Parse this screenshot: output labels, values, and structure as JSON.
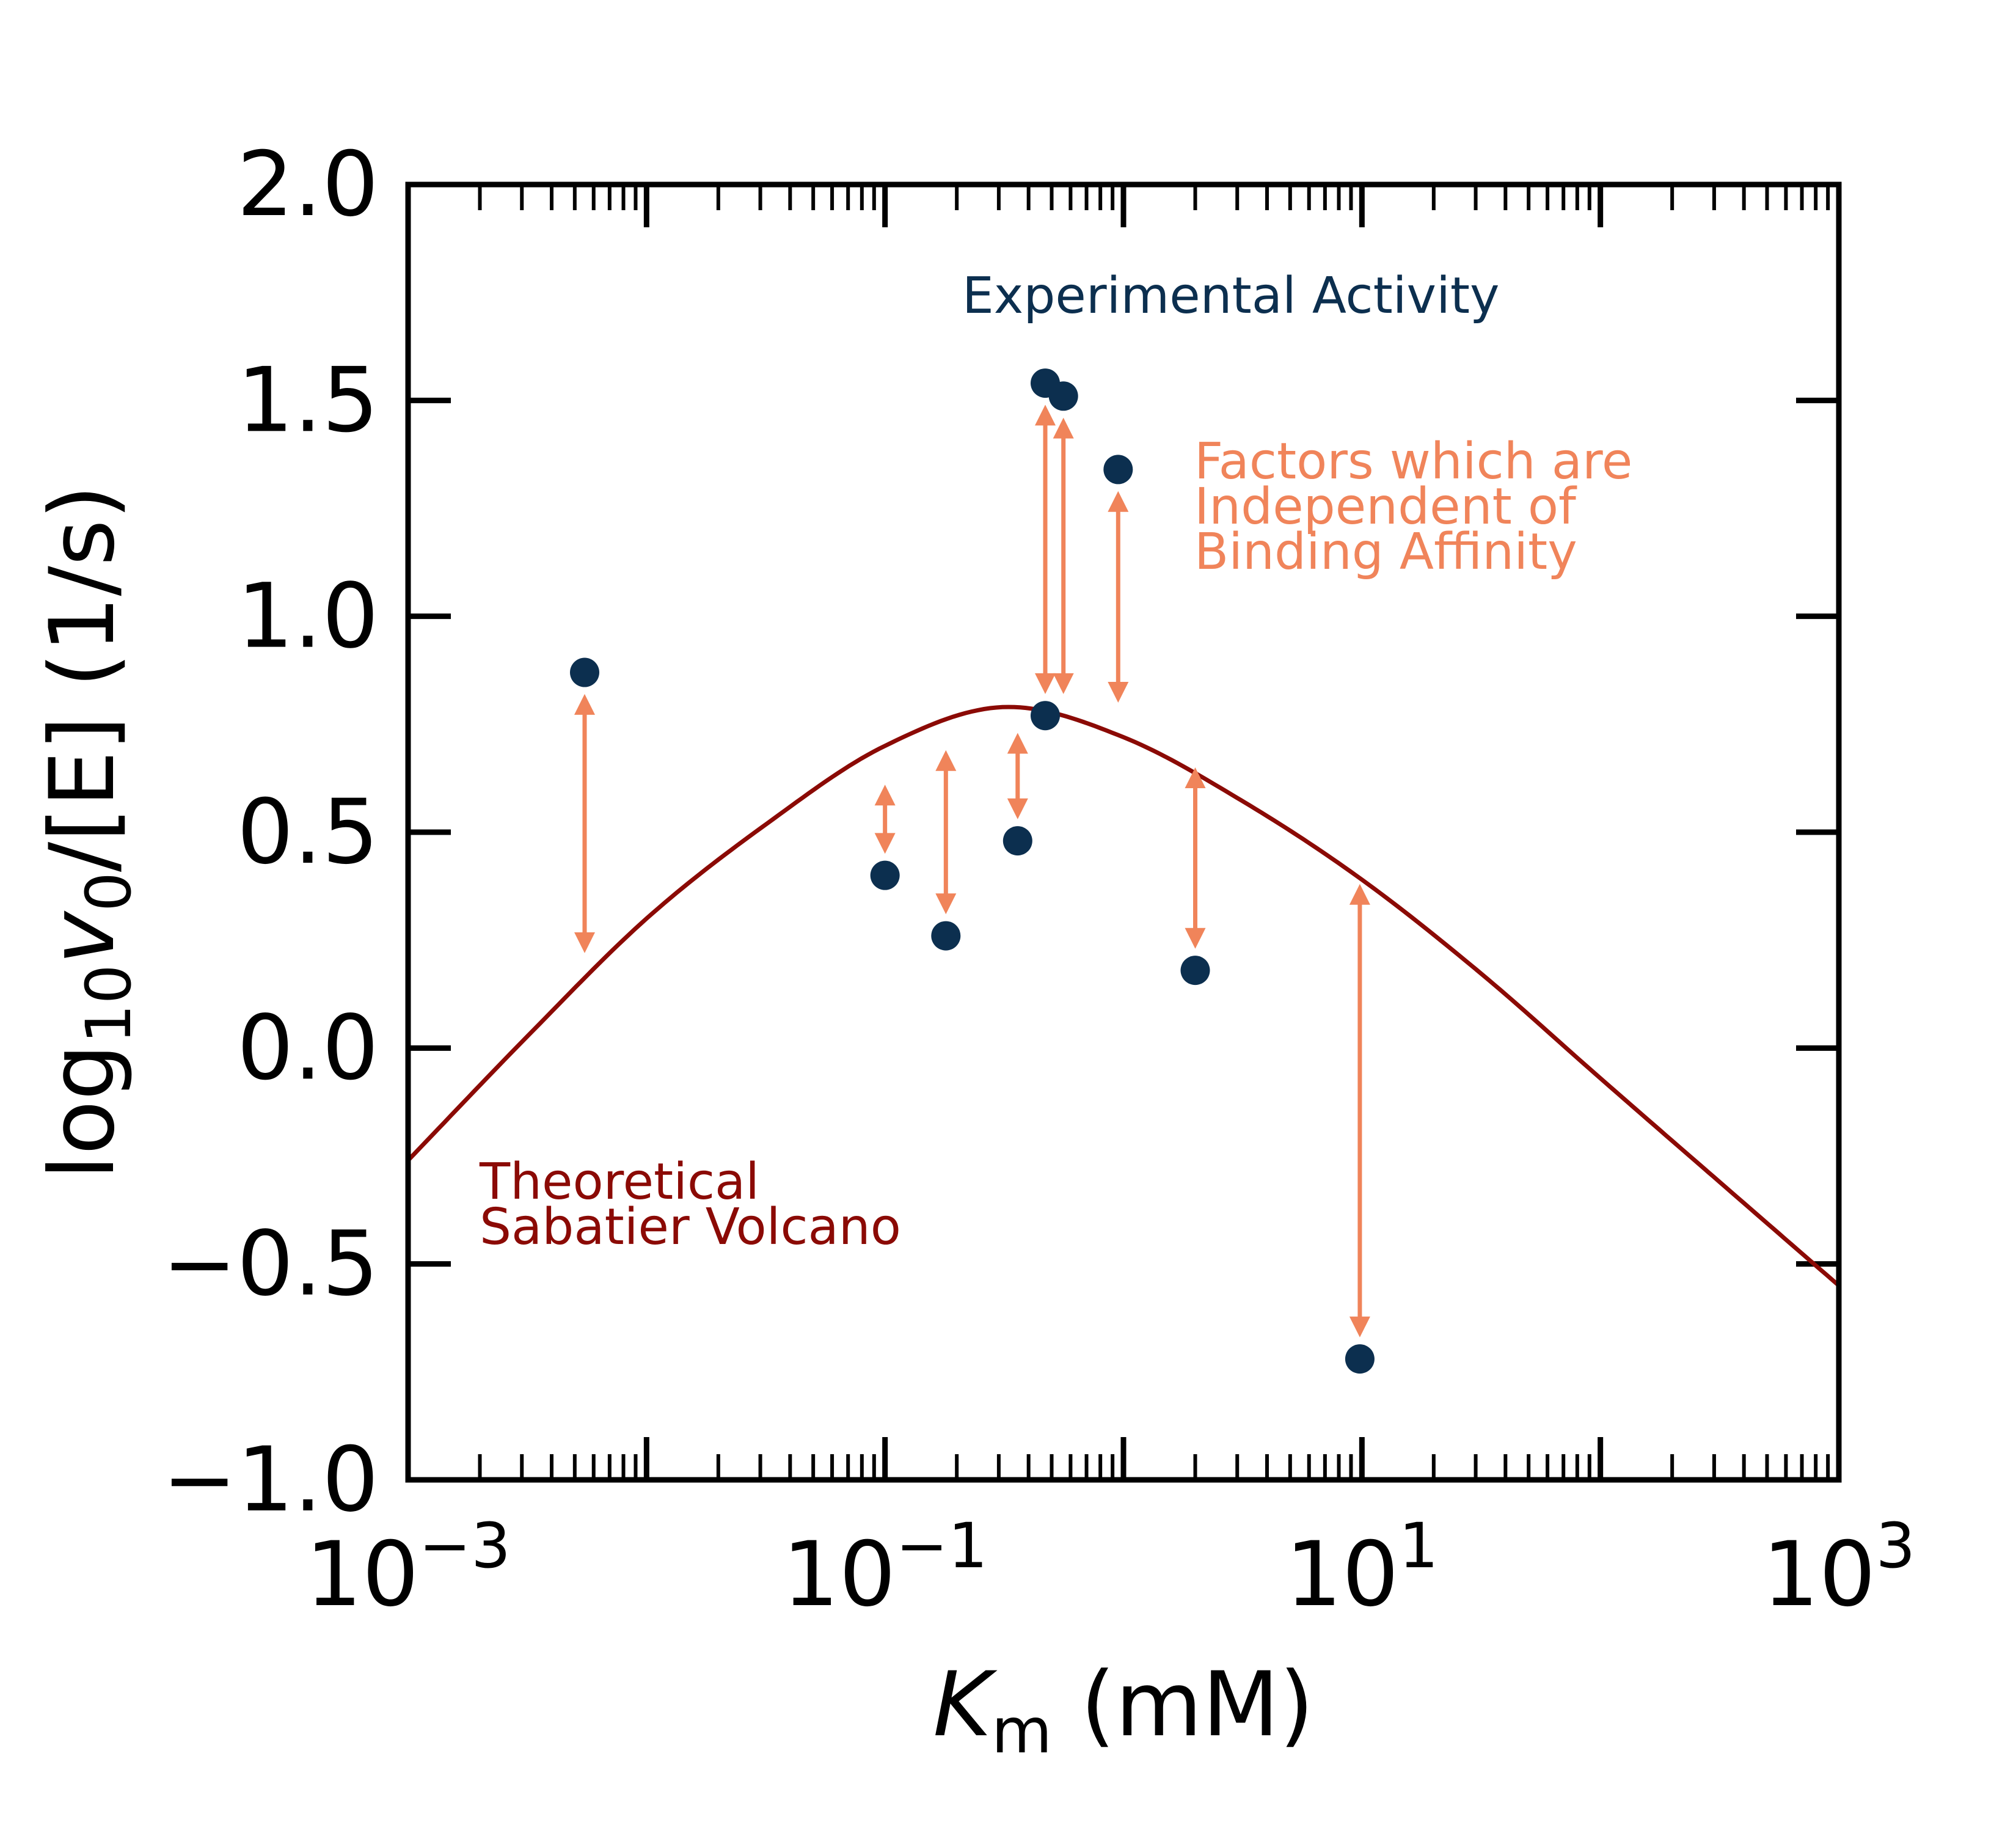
{
  "chart_data": {
    "type": "scatter",
    "x_scale": "log",
    "xlim": [
      0.001,
      1000
    ],
    "ylim": [
      -1.0,
      2.0
    ],
    "grid": false,
    "xlabel": {
      "main": "K",
      "sub": "m",
      "rest": " (mM)"
    },
    "ylabel": {
      "pre": "log",
      "sub": "10",
      "var": "v",
      "var_sub": "0",
      "rest": "/[E] (1/s)"
    },
    "y_ticks": [
      {
        "value": -1.0,
        "label": "−1.0"
      },
      {
        "value": -0.5,
        "label": "−0.5"
      },
      {
        "value": 0.0,
        "label": "0.0"
      },
      {
        "value": 0.5,
        "label": "0.5"
      },
      {
        "value": 1.0,
        "label": "1.0"
      },
      {
        "value": 1.5,
        "label": "1.5"
      },
      {
        "value": 2.0,
        "label": "2.0"
      }
    ],
    "x_ticks": [
      {
        "value": 0.001,
        "base": "10",
        "exp": "−3"
      },
      {
        "value": 0.1,
        "base": "10",
        "exp": "−1"
      },
      {
        "value": 10,
        "base": "10",
        "exp": "1"
      },
      {
        "value": 1000,
        "base": "10",
        "exp": "3"
      }
    ],
    "series": [
      {
        "name": "Theoretical Sabatier Volcano",
        "kind": "line",
        "color": "#8b0a05",
        "peak_x": 0.33,
        "peak_y": 0.79,
        "x": [
          0.001,
          0.0032,
          0.01,
          0.032,
          0.1,
          0.33,
          1,
          3.2,
          10,
          32,
          100,
          316,
          1000
        ],
        "y": [
          -0.26,
          0.03,
          0.3,
          0.52,
          0.7,
          0.79,
          0.72,
          0.57,
          0.39,
          0.17,
          -0.07,
          -0.31,
          -0.55
        ]
      },
      {
        "name": "Experimental Activity",
        "kind": "scatter",
        "color": "#0c2f4f",
        "points": [
          {
            "x": 0.0055,
            "y": 0.87
          },
          {
            "x": 0.1,
            "y": 0.4
          },
          {
            "x": 0.18,
            "y": 0.26
          },
          {
            "x": 0.36,
            "y": 0.48
          },
          {
            "x": 0.47,
            "y": 1.54
          },
          {
            "x": 0.47,
            "y": 0.77
          },
          {
            "x": 0.56,
            "y": 1.51
          },
          {
            "x": 0.95,
            "y": 1.34
          },
          {
            "x": 2.0,
            "y": 0.18
          },
          {
            "x": 9.8,
            "y": -0.72
          }
        ]
      },
      {
        "name": "Factors which are Independent of Binding Affinity",
        "kind": "double-arrow",
        "color": "#f0845a",
        "arrows": [
          {
            "x": 0.0055,
            "y1": 0.82,
            "y2": 0.22
          },
          {
            "x": 0.1,
            "y1": 0.61,
            "y2": 0.45
          },
          {
            "x": 0.18,
            "y1": 0.69,
            "y2": 0.31
          },
          {
            "x": 0.36,
            "y1": 0.73,
            "y2": 0.53
          },
          {
            "x": 0.47,
            "y1": 1.49,
            "y2": 0.82
          },
          {
            "x": 0.56,
            "y1": 1.46,
            "y2": 0.82
          },
          {
            "x": 0.95,
            "y1": 1.29,
            "y2": 0.8
          },
          {
            "x": 2.0,
            "y1": 0.65,
            "y2": 0.23
          },
          {
            "x": 9.8,
            "y1": 0.38,
            "y2": -0.67
          }
        ]
      }
    ],
    "annotations": {
      "experimental": [
        "Experimental Activity"
      ],
      "factors": [
        "Factors which are",
        "Independent of",
        "Binding Affinity"
      ],
      "theoretical": [
        "Theoretical",
        "Sabatier Volcano"
      ]
    }
  }
}
